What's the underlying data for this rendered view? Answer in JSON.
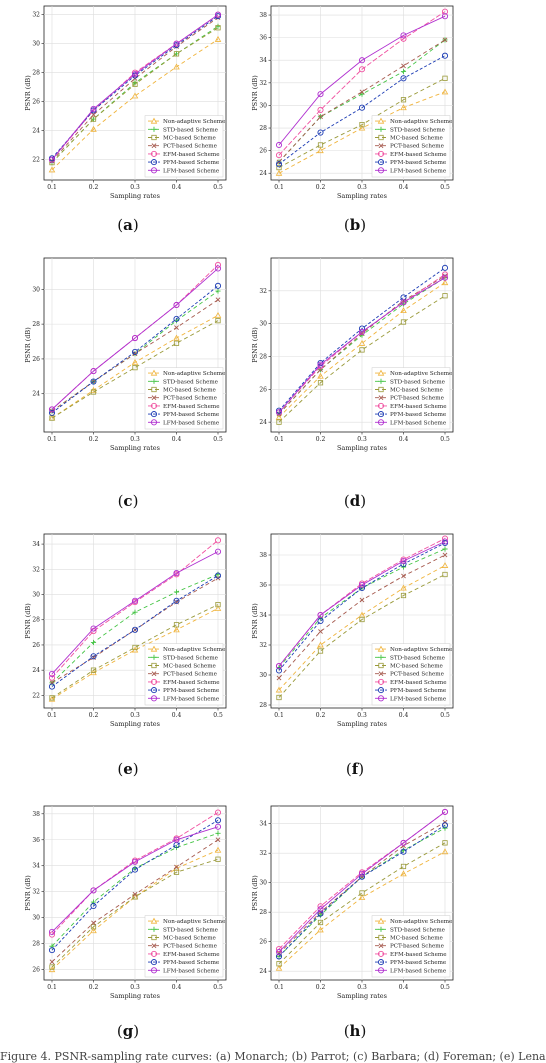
{
  "series_styles": [
    {
      "name": "Non-adaptive Scheme",
      "color": "#f0b43c",
      "marker": "triangle",
      "dash": "4,3"
    },
    {
      "name": "STD-based Scheme",
      "color": "#44c444",
      "marker": "plus",
      "dash": "4,3"
    },
    {
      "name": "MC-based Scheme",
      "color": "#9a9a3a",
      "marker": "square",
      "dash": "4,3"
    },
    {
      "name": "PCT-based Scheme",
      "color": "#a65a4e",
      "marker": "x",
      "dash": "4,3"
    },
    {
      "name": "EFM-based Scheme",
      "color": "#f050a0",
      "marker": "circle-open",
      "dash": "5,2"
    },
    {
      "name": "PFM-based Scheme",
      "color": "#1c3cb4",
      "marker": "circle-open",
      "dash": "3,2"
    },
    {
      "name": "LFM-based Scheme",
      "color": "#b030d0",
      "marker": "circle-open",
      "dash": ""
    }
  ],
  "chart_data": [
    {
      "type": "line",
      "caption": "(a)",
      "xlabel": "Sampling rates",
      "ylabel": "PSNR (dB)",
      "x": [
        0.1,
        0.2,
        0.3,
        0.4,
        0.5
      ],
      "xticks": [
        "0.1",
        "0.2",
        "0.3",
        "0.4",
        "0.5"
      ],
      "yticks": [
        22,
        24,
        26,
        28,
        30,
        32
      ],
      "ylim": [
        20.6,
        32.6
      ],
      "legend": "bottom-right",
      "grid": true,
      "series": [
        {
          "name": "Non-adaptive Scheme",
          "values": [
            21.3,
            24.1,
            26.4,
            28.4,
            30.3
          ]
        },
        {
          "name": "STD-based Scheme",
          "values": [
            21.8,
            24.8,
            27.3,
            29.3,
            31.2
          ]
        },
        {
          "name": "MC-based Scheme",
          "values": [
            21.8,
            24.8,
            27.2,
            29.3,
            31.1
          ]
        },
        {
          "name": "PCT-based Scheme",
          "values": [
            21.9,
            25.1,
            27.6,
            29.8,
            31.8
          ]
        },
        {
          "name": "EFM-based Scheme",
          "values": [
            22.0,
            25.4,
            28.0,
            30.0,
            32.0
          ]
        },
        {
          "name": "PFM-based Scheme",
          "values": [
            22.1,
            25.4,
            27.8,
            29.9,
            31.9
          ]
        },
        {
          "name": "LFM-based Scheme",
          "values": [
            22.0,
            25.5,
            27.9,
            30.0,
            32.0
          ]
        }
      ]
    },
    {
      "type": "line",
      "caption": "(b)",
      "xlabel": "Sampling rates",
      "ylabel": "PSNR (dB)",
      "x": [
        0.1,
        0.2,
        0.3,
        0.4,
        0.5
      ],
      "xticks": [
        "0.1",
        "0.2",
        "0.3",
        "0.4",
        "0.5"
      ],
      "yticks": [
        24,
        26,
        28,
        30,
        32,
        34,
        36,
        38
      ],
      "ylim": [
        23.4,
        38.8
      ],
      "legend": "bottom-right",
      "grid": true,
      "series": [
        {
          "name": "Non-adaptive Scheme",
          "values": [
            24.0,
            26.0,
            28.0,
            29.8,
            31.2
          ]
        },
        {
          "name": "STD-based Scheme",
          "values": [
            25.0,
            29.0,
            31.0,
            33.0,
            35.8
          ]
        },
        {
          "name": "MC-based Scheme",
          "values": [
            24.5,
            26.5,
            28.3,
            30.5,
            32.4
          ]
        },
        {
          "name": "PCT-based Scheme",
          "values": [
            25.0,
            29.0,
            31.2,
            33.5,
            35.8
          ]
        },
        {
          "name": "EFM-based Scheme",
          "values": [
            25.6,
            29.6,
            33.2,
            35.9,
            38.3
          ]
        },
        {
          "name": "PFM-based Scheme",
          "values": [
            24.8,
            27.6,
            29.8,
            32.4,
            34.4
          ]
        },
        {
          "name": "LFM-based Scheme",
          "values": [
            26.5,
            31.0,
            34.0,
            36.2,
            37.9
          ]
        }
      ]
    },
    {
      "type": "line",
      "caption": "(c)",
      "xlabel": "Sampling rates",
      "ylabel": "PSNR (dB)",
      "x": [
        0.1,
        0.2,
        0.3,
        0.4,
        0.5
      ],
      "xticks": [
        "0.1",
        "0.2",
        "0.3",
        "0.4",
        "0.5"
      ],
      "yticks": [
        24,
        26,
        28,
        30
      ],
      "ylim": [
        21.8,
        31.8
      ],
      "legend": "bottom-right",
      "grid": true,
      "series": [
        {
          "name": "Non-adaptive Scheme",
          "values": [
            22.6,
            24.2,
            25.8,
            27.2,
            28.5
          ]
        },
        {
          "name": "STD-based Scheme",
          "values": [
            23.0,
            24.7,
            26.3,
            28.2,
            29.9
          ]
        },
        {
          "name": "MC-based Scheme",
          "values": [
            22.6,
            24.1,
            25.5,
            26.9,
            28.2
          ]
        },
        {
          "name": "PCT-based Scheme",
          "values": [
            23.0,
            24.7,
            26.3,
            27.8,
            29.4
          ]
        },
        {
          "name": "EFM-based Scheme",
          "values": [
            23.1,
            25.3,
            27.2,
            29.1,
            31.4
          ]
        },
        {
          "name": "PFM-based Scheme",
          "values": [
            22.9,
            24.7,
            26.4,
            28.3,
            30.2
          ]
        },
        {
          "name": "LFM-based Scheme",
          "values": [
            23.1,
            25.3,
            27.2,
            29.1,
            31.2
          ]
        }
      ]
    },
    {
      "type": "line",
      "caption": "(d)",
      "xlabel": "Sampling rates",
      "ylabel": "PSNR (dB)",
      "x": [
        0.1,
        0.2,
        0.3,
        0.4,
        0.5
      ],
      "xticks": [
        "0.1",
        "0.2",
        "0.3",
        "0.4",
        "0.5"
      ],
      "yticks": [
        24,
        26,
        28,
        30,
        32
      ],
      "ylim": [
        23.4,
        34.0
      ],
      "legend": "bottom-right",
      "grid": true,
      "series": [
        {
          "name": "Non-adaptive Scheme",
          "values": [
            24.3,
            26.8,
            28.8,
            30.8,
            32.5
          ]
        },
        {
          "name": "STD-based Scheme",
          "values": [
            24.5,
            27.2,
            29.3,
            31.2,
            32.8
          ]
        },
        {
          "name": "MC-based Scheme",
          "values": [
            24.0,
            26.4,
            28.4,
            30.1,
            31.7
          ]
        },
        {
          "name": "PCT-based Scheme",
          "values": [
            24.5,
            27.2,
            29.4,
            31.4,
            32.9
          ]
        },
        {
          "name": "EFM-based Scheme",
          "values": [
            24.6,
            27.4,
            29.5,
            31.3,
            33.0
          ]
        },
        {
          "name": "PFM-based Scheme",
          "values": [
            24.7,
            27.6,
            29.7,
            31.6,
            33.4
          ]
        },
        {
          "name": "LFM-based Scheme",
          "values": [
            24.6,
            27.5,
            29.5,
            31.3,
            32.8
          ]
        }
      ]
    },
    {
      "type": "line",
      "caption": "(e)",
      "xlabel": "Sampling rates",
      "ylabel": "PSNR (dB)",
      "x": [
        0.1,
        0.2,
        0.3,
        0.4,
        0.5
      ],
      "xticks": [
        "0.1",
        "0.2",
        "0.3",
        "0.4",
        "0.5"
      ],
      "yticks": [
        22,
        24,
        26,
        28,
        30,
        32,
        34
      ],
      "ylim": [
        21.0,
        34.8
      ],
      "legend": "bottom-right",
      "grid": true,
      "series": [
        {
          "name": "Non-adaptive Scheme",
          "values": [
            21.7,
            23.8,
            25.6,
            27.2,
            28.9
          ]
        },
        {
          "name": "STD-based Scheme",
          "values": [
            23.0,
            26.2,
            28.6,
            30.2,
            31.6
          ]
        },
        {
          "name": "MC-based Scheme",
          "values": [
            21.8,
            24.0,
            25.8,
            27.6,
            29.2
          ]
        },
        {
          "name": "PCT-based Scheme",
          "values": [
            23.0,
            25.0,
            27.2,
            29.4,
            31.3
          ]
        },
        {
          "name": "EFM-based Scheme",
          "values": [
            23.4,
            27.1,
            29.4,
            31.6,
            34.3
          ]
        },
        {
          "name": "PFM-based Scheme",
          "values": [
            22.7,
            25.1,
            27.2,
            29.5,
            31.5
          ]
        },
        {
          "name": "LFM-based Scheme",
          "values": [
            23.7,
            27.3,
            29.5,
            31.7,
            33.4
          ]
        }
      ]
    },
    {
      "type": "line",
      "caption": "(f)",
      "xlabel": "Sampling rates",
      "ylabel": "PSNR (dB)",
      "x": [
        0.1,
        0.2,
        0.3,
        0.4,
        0.5
      ],
      "xticks": [
        "0.1",
        "0.2",
        "0.3",
        "0.4",
        "0.5"
      ],
      "yticks": [
        28,
        30,
        32,
        34,
        36,
        38
      ],
      "ylim": [
        27.8,
        39.4
      ],
      "legend": "bottom-right",
      "grid": true,
      "series": [
        {
          "name": "Non-adaptive Scheme",
          "values": [
            29.0,
            32.0,
            34.0,
            35.8,
            37.3
          ]
        },
        {
          "name": "STD-based Scheme",
          "values": [
            30.5,
            33.8,
            35.8,
            37.2,
            38.4
          ]
        },
        {
          "name": "MC-based Scheme",
          "values": [
            28.5,
            31.6,
            33.7,
            35.3,
            36.7
          ]
        },
        {
          "name": "PCT-based Scheme",
          "values": [
            29.8,
            32.9,
            35.0,
            36.6,
            38.0
          ]
        },
        {
          "name": "EFM-based Scheme",
          "values": [
            30.6,
            34.0,
            36.1,
            37.7,
            39.1
          ]
        },
        {
          "name": "PFM-based Scheme",
          "values": [
            30.3,
            33.6,
            35.8,
            37.4,
            38.8
          ]
        },
        {
          "name": "LFM-based Scheme",
          "values": [
            30.6,
            34.0,
            36.0,
            37.6,
            38.9
          ]
        }
      ]
    },
    {
      "type": "line",
      "caption": "(g)",
      "xlabel": "Sampling rates",
      "ylabel": "PSNR (dB)",
      "x": [
        0.1,
        0.2,
        0.3,
        0.4,
        0.5
      ],
      "xticks": [
        "0.1",
        "0.2",
        "0.3",
        "0.4",
        "0.5"
      ],
      "yticks": [
        26,
        28,
        30,
        32,
        34,
        36,
        38
      ],
      "ylim": [
        25.2,
        38.6
      ],
      "legend": "bottom-right",
      "grid": true,
      "series": [
        {
          "name": "Non-adaptive Scheme",
          "values": [
            26.0,
            29.0,
            31.6,
            33.8,
            35.2
          ]
        },
        {
          "name": "STD-based Scheme",
          "values": [
            27.8,
            31.2,
            33.8,
            35.4,
            36.5
          ]
        },
        {
          "name": "MC-based Scheme",
          "values": [
            26.2,
            29.3,
            31.6,
            33.5,
            34.5
          ]
        },
        {
          "name": "PCT-based Scheme",
          "values": [
            26.6,
            29.6,
            31.8,
            33.9,
            36.0
          ]
        },
        {
          "name": "EFM-based Scheme",
          "values": [
            28.7,
            32.1,
            34.4,
            36.1,
            38.1
          ]
        },
        {
          "name": "PFM-based Scheme",
          "values": [
            27.5,
            30.9,
            33.7,
            35.6,
            37.5
          ]
        },
        {
          "name": "LFM-based Scheme",
          "values": [
            28.9,
            32.1,
            34.3,
            36.0,
            37.0
          ]
        }
      ]
    },
    {
      "type": "line",
      "caption": "(h)",
      "xlabel": "Sampling rates",
      "ylabel": "PSNR (dB)",
      "x": [
        0.1,
        0.2,
        0.3,
        0.4,
        0.5
      ],
      "xticks": [
        "0.1",
        "0.2",
        "0.3",
        "0.4",
        "0.5"
      ],
      "yticks": [
        24,
        26,
        28,
        30,
        32,
        34
      ],
      "ylim": [
        23.4,
        35.2
      ],
      "legend": "bottom-right",
      "grid": true,
      "series": [
        {
          "name": "Non-adaptive Scheme",
          "values": [
            24.2,
            26.8,
            29.0,
            30.6,
            32.1
          ]
        },
        {
          "name": "STD-based Scheme",
          "values": [
            25.0,
            27.8,
            30.4,
            32.2,
            33.7
          ]
        },
        {
          "name": "MC-based Scheme",
          "values": [
            24.5,
            27.3,
            29.3,
            31.1,
            32.7
          ]
        },
        {
          "name": "PCT-based Scheme",
          "values": [
            25.2,
            28.0,
            30.4,
            32.5,
            34.1
          ]
        },
        {
          "name": "EFM-based Scheme",
          "values": [
            25.5,
            28.4,
            30.7,
            32.7,
            34.8
          ]
        },
        {
          "name": "PFM-based Scheme",
          "values": [
            25.0,
            27.9,
            30.4,
            32.1,
            33.9
          ]
        },
        {
          "name": "LFM-based Scheme",
          "values": [
            25.3,
            28.2,
            30.6,
            32.7,
            34.8
          ]
        }
      ]
    }
  ],
  "footer_text": "Figure 4. PSNR-sampling rate curves: (a) Monarch; (b) Parrot; (c) Barbara; (d) Foreman; (e) Lena"
}
